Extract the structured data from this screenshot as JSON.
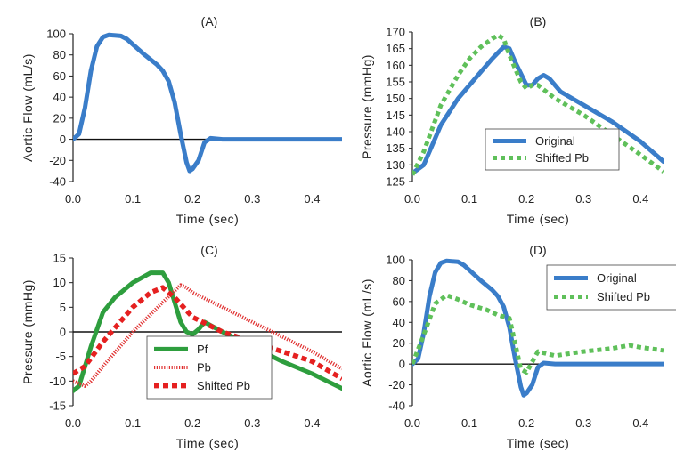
{
  "chart_data": [
    {
      "panel": "(A)",
      "type": "line",
      "xlabel": "Time (sec)",
      "ylabel": "Aortic Flow (mL/s)",
      "xlim": [
        0,
        0.45
      ],
      "ylim": [
        -40,
        100
      ],
      "xticks": [
        "0.0",
        "0.1",
        "0.2",
        "0.3",
        "0.4"
      ],
      "yticks": [
        "-40",
        "-20",
        "0",
        "20",
        "40",
        "60",
        "80",
        "100"
      ],
      "zero_line": true,
      "legend": null,
      "series": [
        {
          "color": "#3a7dc9",
          "style": "solid",
          "x": [
            0,
            0.01,
            0.02,
            0.03,
            0.04,
            0.05,
            0.06,
            0.08,
            0.09,
            0.1,
            0.12,
            0.14,
            0.15,
            0.16,
            0.17,
            0.18,
            0.19,
            0.195,
            0.2,
            0.21,
            0.22,
            0.23,
            0.25,
            0.3,
            0.35,
            0.4,
            0.45
          ],
          "y": [
            0,
            5,
            30,
            65,
            88,
            97,
            99,
            98,
            95,
            90,
            80,
            71,
            65,
            55,
            35,
            5,
            -22,
            -30,
            -28,
            -20,
            -3,
            1,
            0,
            0,
            0,
            0,
            0
          ]
        }
      ]
    },
    {
      "panel": "(B)",
      "type": "line",
      "xlabel": "Time (sec)",
      "ylabel": "Pressure (mmHg)",
      "xlim": [
        0,
        0.44
      ],
      "ylim": [
        125,
        170
      ],
      "xticks": [
        "0.0",
        "0.1",
        "0.2",
        "0.3",
        "0.4"
      ],
      "yticks": [
        "125",
        "130",
        "135",
        "140",
        "145",
        "150",
        "155",
        "160",
        "165",
        "170"
      ],
      "zero_line": false,
      "legend": "bottom-right",
      "series": [
        {
          "name": "Original",
          "color": "#3a7dc9",
          "style": "solid",
          "x": [
            0,
            0.02,
            0.05,
            0.08,
            0.1,
            0.12,
            0.14,
            0.16,
            0.17,
            0.18,
            0.2,
            0.21,
            0.22,
            0.23,
            0.24,
            0.26,
            0.3,
            0.35,
            0.4,
            0.44
          ],
          "y": [
            127.5,
            130,
            142,
            150,
            154,
            158,
            162,
            165.5,
            165,
            161,
            154,
            154,
            156,
            157,
            156,
            152,
            148,
            143,
            137,
            131
          ]
        },
        {
          "name": "Shifted Pb",
          "color": "#5fc05a",
          "style": "dotted",
          "x": [
            0,
            0.02,
            0.05,
            0.08,
            0.1,
            0.12,
            0.14,
            0.15,
            0.16,
            0.17,
            0.19,
            0.2,
            0.21,
            0.22,
            0.25,
            0.3,
            0.35,
            0.4,
            0.44
          ],
          "y": [
            127,
            134,
            148,
            157,
            162,
            165.5,
            168,
            169,
            168,
            163,
            155,
            153,
            154,
            154,
            150,
            145,
            139,
            133,
            128
          ]
        }
      ]
    },
    {
      "panel": "(C)",
      "type": "line",
      "xlabel": "Time (sec)",
      "ylabel": "Pressure (mmHg)",
      "xlim": [
        0,
        0.45
      ],
      "ylim": [
        -15,
        15
      ],
      "xticks": [
        "0.0",
        "0.1",
        "0.2",
        "0.3",
        "0.4"
      ],
      "yticks": [
        "-15",
        "-10",
        "-5",
        "0",
        "5",
        "10",
        "15"
      ],
      "zero_line": true,
      "legend": "bottom-center",
      "series": [
        {
          "name": "Pf",
          "color": "#2e9e3e",
          "style": "solid",
          "x": [
            0,
            0.01,
            0.03,
            0.05,
            0.07,
            0.1,
            0.13,
            0.15,
            0.16,
            0.17,
            0.18,
            0.19,
            0.2,
            0.21,
            0.22,
            0.25,
            0.3,
            0.35,
            0.4,
            0.45
          ],
          "y": [
            -12,
            -11,
            -3,
            4,
            7,
            10,
            12,
            12,
            10,
            6,
            2,
            0,
            -0.5,
            0.5,
            2,
            0,
            -3,
            -6,
            -8.5,
            -11.5
          ]
        },
        {
          "name": "Pb",
          "color": "#e03030",
          "style": "dotted-thin",
          "x": [
            0,
            0.02,
            0.03,
            0.05,
            0.1,
            0.15,
            0.18,
            0.19,
            0.2,
            0.25,
            0.3,
            0.35,
            0.4,
            0.45
          ],
          "y": [
            -10,
            -11,
            -10,
            -7,
            0,
            6,
            9.5,
            9,
            8,
            5,
            2,
            -1,
            -4,
            -7.5
          ]
        },
        {
          "name": "Shifted Pb",
          "color": "#e52020",
          "style": "dotted-thick",
          "x": [
            0,
            0.02,
            0.05,
            0.1,
            0.13,
            0.15,
            0.17,
            0.2,
            0.25,
            0.3,
            0.35,
            0.4,
            0.45
          ],
          "y": [
            -8.5,
            -7,
            -2,
            5,
            8,
            9,
            7,
            3,
            0,
            -2,
            -4,
            -6,
            -9.5
          ]
        }
      ]
    },
    {
      "panel": "(D)",
      "type": "line",
      "xlabel": "Time (sec)",
      "ylabel": "Aortic Flow (mL/s)",
      "xlim": [
        0,
        0.44
      ],
      "ylim": [
        -40,
        100
      ],
      "xticks": [
        "0.0",
        "0.1",
        "0.2",
        "0.3",
        "0.4"
      ],
      "yticks": [
        "-40",
        "-20",
        "0",
        "20",
        "40",
        "60",
        "80",
        "100"
      ],
      "zero_line": true,
      "legend": "top-right",
      "series": [
        {
          "name": "Original",
          "color": "#3a7dc9",
          "style": "solid",
          "x": [
            0,
            0.01,
            0.02,
            0.03,
            0.04,
            0.05,
            0.06,
            0.08,
            0.09,
            0.1,
            0.12,
            0.14,
            0.15,
            0.16,
            0.17,
            0.18,
            0.19,
            0.195,
            0.2,
            0.21,
            0.22,
            0.23,
            0.25,
            0.3,
            0.35,
            0.4,
            0.44
          ],
          "y": [
            0,
            5,
            30,
            65,
            88,
            97,
            99,
            98,
            95,
            90,
            80,
            71,
            65,
            55,
            35,
            5,
            -22,
            -30,
            -28,
            -20,
            -3,
            1,
            0,
            0,
            0,
            0,
            0
          ]
        },
        {
          "name": "Shifted Pb",
          "color": "#5fc05a",
          "style": "dotted",
          "x": [
            0,
            0.02,
            0.04,
            0.06,
            0.08,
            0.1,
            0.13,
            0.15,
            0.17,
            0.18,
            0.19,
            0.2,
            0.22,
            0.25,
            0.3,
            0.35,
            0.38,
            0.4,
            0.44
          ],
          "y": [
            0,
            28,
            58,
            66,
            62,
            57,
            52,
            47,
            44,
            20,
            -5,
            -8,
            12,
            8,
            12,
            15,
            18,
            16,
            13
          ]
        }
      ]
    }
  ]
}
